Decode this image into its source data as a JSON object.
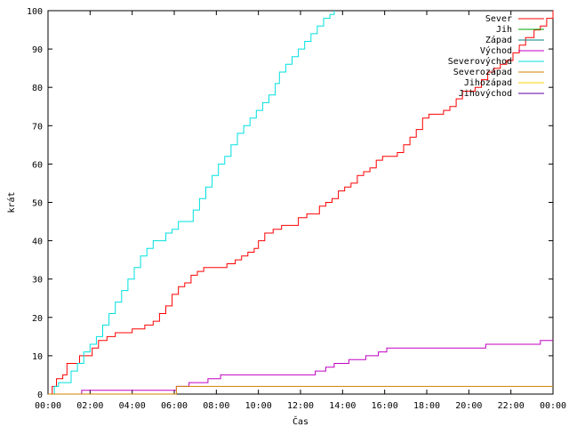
{
  "chart_data": {
    "type": "line",
    "title": "",
    "xlabel": "Čas",
    "ylabel": "krát",
    "xlim": [
      0,
      24
    ],
    "ylim": [
      0,
      100
    ],
    "x_ticks": [
      "00:00",
      "02:00",
      "04:00",
      "06:00",
      "08:00",
      "10:00",
      "12:00",
      "14:00",
      "16:00",
      "18:00",
      "20:00",
      "22:00",
      "00:00"
    ],
    "y_ticks": [
      0,
      10,
      20,
      30,
      40,
      50,
      60,
      70,
      80,
      90,
      100
    ],
    "grid": false,
    "legend_position": "top-right",
    "series": [
      {
        "name": "Sever",
        "color": "#ff0000",
        "points": [
          [
            0.0,
            0
          ],
          [
            0.2,
            2
          ],
          [
            0.4,
            4
          ],
          [
            0.7,
            5
          ],
          [
            0.9,
            8
          ],
          [
            1.3,
            8
          ],
          [
            1.5,
            10
          ],
          [
            1.9,
            10
          ],
          [
            2.1,
            12
          ],
          [
            2.4,
            14
          ],
          [
            2.8,
            15
          ],
          [
            3.2,
            16
          ],
          [
            3.7,
            16
          ],
          [
            4.0,
            17
          ],
          [
            4.3,
            17
          ],
          [
            4.6,
            18
          ],
          [
            5.0,
            19
          ],
          [
            5.3,
            21
          ],
          [
            5.6,
            23
          ],
          [
            5.9,
            26
          ],
          [
            6.2,
            28
          ],
          [
            6.5,
            29
          ],
          [
            6.8,
            31
          ],
          [
            7.1,
            32
          ],
          [
            7.4,
            33
          ],
          [
            8.2,
            33
          ],
          [
            8.5,
            34
          ],
          [
            8.9,
            35
          ],
          [
            9.2,
            36
          ],
          [
            9.5,
            37
          ],
          [
            9.8,
            38
          ],
          [
            10.0,
            40
          ],
          [
            10.3,
            42
          ],
          [
            10.7,
            43
          ],
          [
            11.1,
            44
          ],
          [
            11.6,
            44
          ],
          [
            11.9,
            46
          ],
          [
            12.3,
            47
          ],
          [
            12.6,
            47
          ],
          [
            12.9,
            49
          ],
          [
            13.2,
            50
          ],
          [
            13.5,
            51
          ],
          [
            13.8,
            53
          ],
          [
            14.1,
            54
          ],
          [
            14.4,
            55
          ],
          [
            14.7,
            57
          ],
          [
            15.0,
            58
          ],
          [
            15.3,
            59
          ],
          [
            15.6,
            61
          ],
          [
            15.9,
            62
          ],
          [
            16.2,
            62
          ],
          [
            16.6,
            63
          ],
          [
            16.9,
            65
          ],
          [
            17.2,
            67
          ],
          [
            17.5,
            69
          ],
          [
            17.8,
            72
          ],
          [
            18.1,
            73
          ],
          [
            18.5,
            73
          ],
          [
            18.8,
            74
          ],
          [
            19.1,
            75
          ],
          [
            19.4,
            77
          ],
          [
            19.7,
            79
          ],
          [
            20.0,
            79
          ],
          [
            20.3,
            80
          ],
          [
            20.6,
            82
          ],
          [
            20.9,
            84
          ],
          [
            21.2,
            85
          ],
          [
            21.5,
            86
          ],
          [
            21.8,
            87
          ],
          [
            22.1,
            89
          ],
          [
            22.4,
            91
          ],
          [
            22.7,
            93
          ],
          [
            23.1,
            95
          ],
          [
            23.4,
            96
          ],
          [
            23.7,
            98
          ],
          [
            24.0,
            100
          ]
        ]
      },
      {
        "name": "Jih",
        "color": "#00a000",
        "points": []
      },
      {
        "name": "Západ",
        "color": "#008080",
        "points": []
      },
      {
        "name": "Východ",
        "color": "#c000c0",
        "points": [
          [
            0.0,
            0
          ],
          [
            1.6,
            0
          ],
          [
            1.6,
            1
          ],
          [
            6.0,
            1
          ],
          [
            6.1,
            2
          ],
          [
            6.6,
            2
          ],
          [
            6.7,
            3
          ],
          [
            7.5,
            3
          ],
          [
            7.6,
            4
          ],
          [
            8.1,
            4
          ],
          [
            8.2,
            5
          ],
          [
            12.6,
            5
          ],
          [
            12.7,
            6
          ],
          [
            13.1,
            6
          ],
          [
            13.2,
            7
          ],
          [
            13.5,
            7
          ],
          [
            13.6,
            8
          ],
          [
            14.2,
            8
          ],
          [
            14.3,
            9
          ],
          [
            15.0,
            9
          ],
          [
            15.1,
            10
          ],
          [
            15.6,
            10
          ],
          [
            15.7,
            11
          ],
          [
            16.0,
            11
          ],
          [
            16.1,
            12
          ],
          [
            20.7,
            12
          ],
          [
            20.8,
            13
          ],
          [
            23.3,
            13
          ],
          [
            23.4,
            14
          ],
          [
            24.0,
            14
          ]
        ]
      },
      {
        "name": "Severovýchod",
        "color": "#00e0e0",
        "points": [
          [
            0.1,
            0
          ],
          [
            0.3,
            2
          ],
          [
            0.5,
            3
          ],
          [
            0.9,
            3
          ],
          [
            1.1,
            6
          ],
          [
            1.4,
            8
          ],
          [
            1.7,
            11
          ],
          [
            2.0,
            13
          ],
          [
            2.3,
            15
          ],
          [
            2.6,
            18
          ],
          [
            2.9,
            21
          ],
          [
            3.2,
            24
          ],
          [
            3.5,
            27
          ],
          [
            3.8,
            30
          ],
          [
            4.1,
            33
          ],
          [
            4.4,
            36
          ],
          [
            4.7,
            38
          ],
          [
            5.0,
            40
          ],
          [
            5.3,
            40
          ],
          [
            5.6,
            42
          ],
          [
            5.9,
            43
          ],
          [
            6.2,
            45
          ],
          [
            6.6,
            45
          ],
          [
            6.9,
            48
          ],
          [
            7.2,
            51
          ],
          [
            7.5,
            54
          ],
          [
            7.8,
            57
          ],
          [
            8.1,
            60
          ],
          [
            8.4,
            62
          ],
          [
            8.7,
            65
          ],
          [
            9.0,
            68
          ],
          [
            9.3,
            70
          ],
          [
            9.6,
            72
          ],
          [
            9.9,
            74
          ],
          [
            10.2,
            76
          ],
          [
            10.5,
            78
          ],
          [
            10.8,
            81
          ],
          [
            11.0,
            84
          ],
          [
            11.3,
            86
          ],
          [
            11.6,
            88
          ],
          [
            11.9,
            90
          ],
          [
            12.2,
            92
          ],
          [
            12.5,
            94
          ],
          [
            12.8,
            96
          ],
          [
            13.1,
            98
          ],
          [
            13.4,
            99
          ],
          [
            13.6,
            100
          ]
        ]
      },
      {
        "name": "Severozápad",
        "color": "#d08000",
        "points": [
          [
            0.0,
            0
          ],
          [
            6.0,
            0
          ],
          [
            6.1,
            2
          ],
          [
            24.0,
            2
          ]
        ]
      },
      {
        "name": "Jihozápad",
        "color": "#ffd000",
        "points": []
      },
      {
        "name": "Jihovýchod",
        "color": "#6000a0",
        "points": []
      }
    ]
  }
}
